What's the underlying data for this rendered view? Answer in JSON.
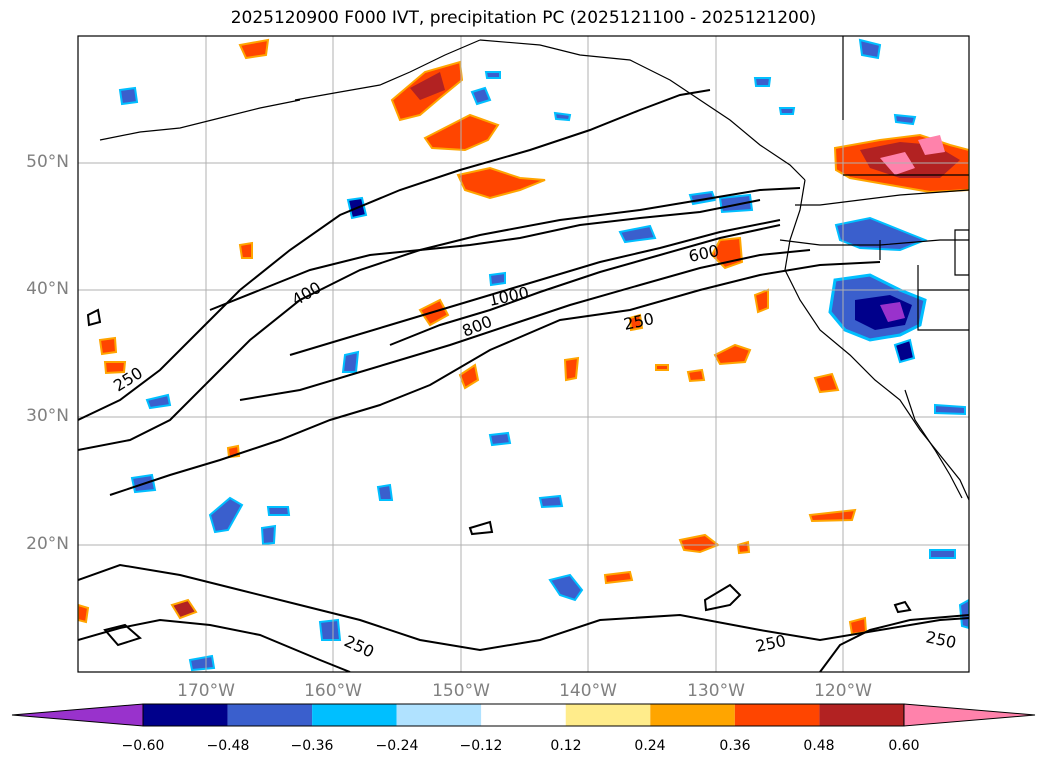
{
  "title": "2025120900 F000 IVT, precipitation PC (2025121100 - 2025121200)",
  "lat_labels": [
    {
      "text": "50°N",
      "lat": 50
    },
    {
      "text": "40°N",
      "lat": 40
    },
    {
      "text": "30°N",
      "lat": 30
    },
    {
      "text": "20°N",
      "lat": 20
    }
  ],
  "lon_labels": [
    {
      "text": "170°W",
      "lon": -170
    },
    {
      "text": "160°W",
      "lon": -160
    },
    {
      "text": "150°W",
      "lon": -150
    },
    {
      "text": "140°W",
      "lon": -140
    },
    {
      "text": "130°W",
      "lon": -130
    },
    {
      "text": "120°W",
      "lon": -120
    }
  ],
  "ivt_contour_labels": [
    "250",
    "400",
    "800",
    "1000",
    "600",
    "250",
    "250",
    "250"
  ],
  "colorbar": {
    "levels": [
      -0.6,
      -0.48,
      -0.36,
      -0.24,
      -0.12,
      0.12,
      0.24,
      0.36,
      0.48,
      0.6
    ],
    "tick_labels": [
      "−0.60",
      "−0.48",
      "−0.36",
      "−0.24",
      "−0.12",
      "0.12",
      "0.24",
      "0.36",
      "0.48",
      "0.60"
    ],
    "colors": [
      "#9932cc",
      "#00008b",
      "#3a5fcd",
      "#00bfff",
      "#b0e2ff",
      "#ffffff",
      "#ffec8b",
      "#ffa500",
      "#ff4500",
      "#b22222",
      "#ff82ab"
    ]
  },
  "colors": {
    "grid": "#b0b0b0",
    "contour": "#000000",
    "axis_label": "#808080"
  }
}
